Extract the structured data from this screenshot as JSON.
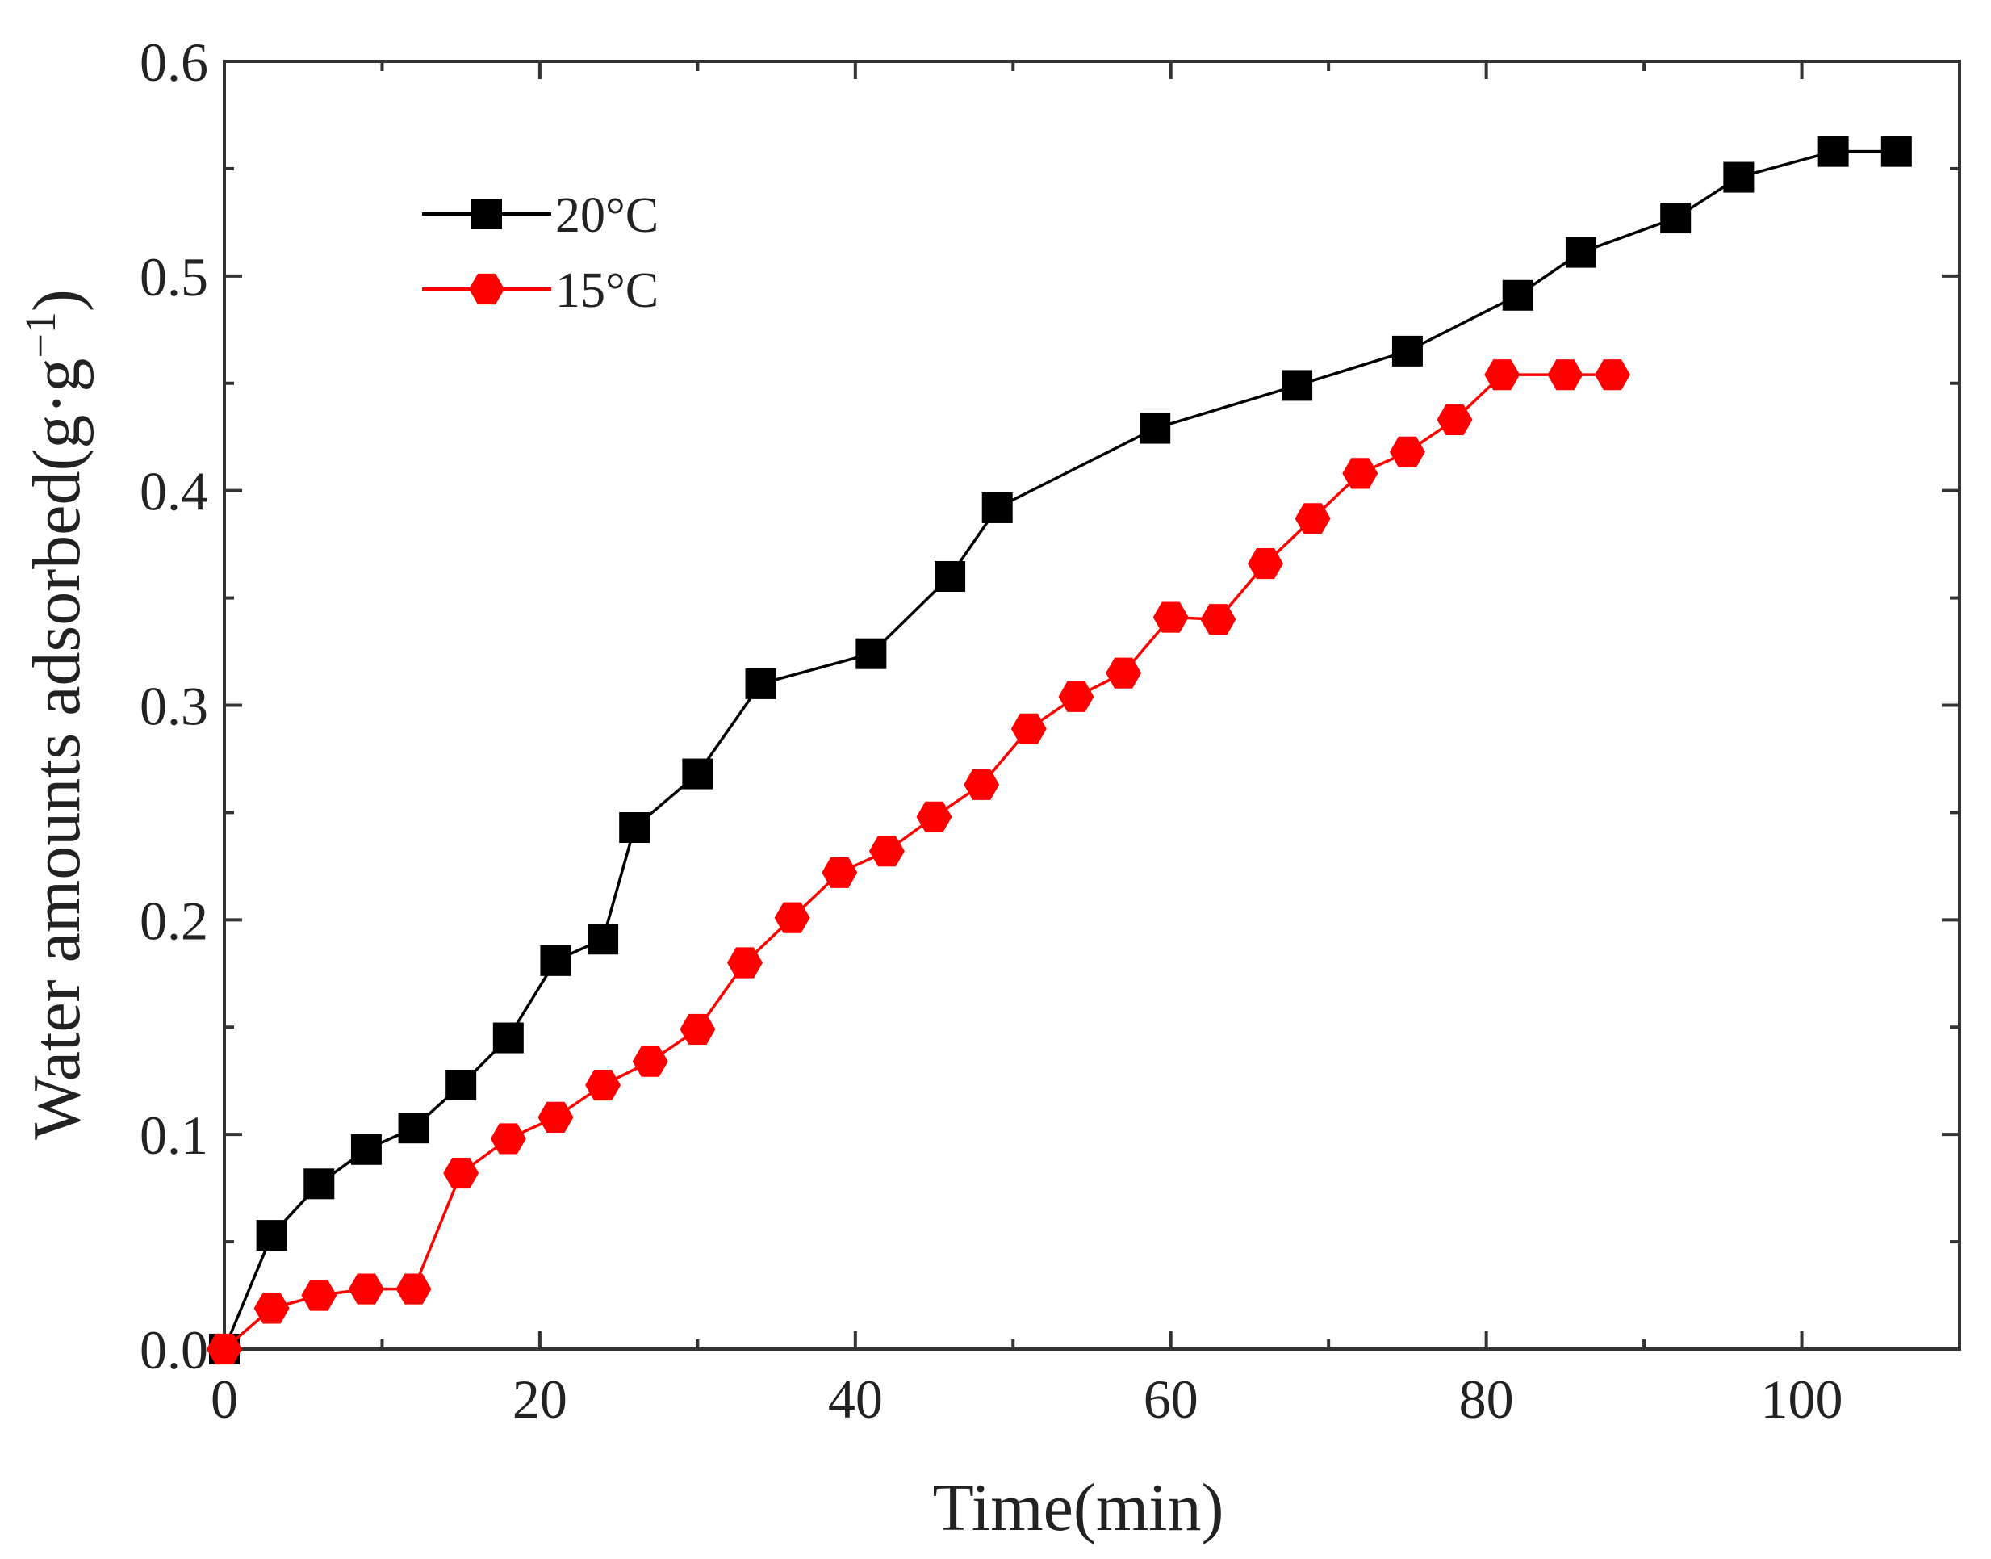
{
  "chart_data": {
    "type": "line",
    "title": "",
    "xlabel": "Time(min)",
    "ylabel": "Water amounts adsorbed(g·g",
    "ylabel_sup": "−1",
    "ylabel_close": ")",
    "xlim": [
      0,
      110
    ],
    "ylim": [
      0,
      0.6
    ],
    "x_ticks": [
      0,
      20,
      40,
      60,
      80,
      100
    ],
    "x_tick_labels": [
      "0",
      "20",
      "40",
      "60",
      "80",
      "100"
    ],
    "y_ticks": [
      0,
      0.1,
      0.2,
      0.3,
      0.4,
      0.5,
      0.6
    ],
    "y_tick_labels": [
      "0.0",
      "0.1",
      "0.2",
      "0.3",
      "0.4",
      "0.5",
      "0.6"
    ],
    "grid": false,
    "legend_position": "top-left",
    "series": [
      {
        "name": "20°C",
        "color": "#000000",
        "marker": "square",
        "x": [
          0,
          3,
          6,
          9,
          12,
          15,
          18,
          21,
          24,
          26,
          30,
          34,
          41,
          46,
          49,
          59,
          68,
          75,
          82,
          86,
          92,
          96,
          102,
          106
        ],
        "y": [
          0.0,
          0.053,
          0.077,
          0.093,
          0.103,
          0.123,
          0.145,
          0.181,
          0.191,
          0.243,
          0.268,
          0.31,
          0.324,
          0.36,
          0.392,
          0.429,
          0.449,
          0.465,
          0.491,
          0.511,
          0.527,
          0.546,
          0.558,
          0.558
        ]
      },
      {
        "name": "15°C",
        "color": "#ff0000",
        "marker": "hexagon",
        "x": [
          0,
          3,
          6,
          9,
          12,
          15,
          18,
          21,
          24,
          27,
          30,
          33,
          36,
          39,
          42,
          45,
          48,
          51,
          54,
          57,
          60,
          63,
          66,
          69,
          72,
          75,
          78,
          81,
          85,
          88
        ],
        "y": [
          0.0,
          0.019,
          0.025,
          0.028,
          0.028,
          0.082,
          0.098,
          0.108,
          0.123,
          0.134,
          0.149,
          0.18,
          0.201,
          0.222,
          0.232,
          0.248,
          0.263,
          0.289,
          0.304,
          0.315,
          0.341,
          0.34,
          0.366,
          0.387,
          0.408,
          0.418,
          0.433,
          0.454,
          0.454,
          0.454
        ]
      }
    ]
  }
}
